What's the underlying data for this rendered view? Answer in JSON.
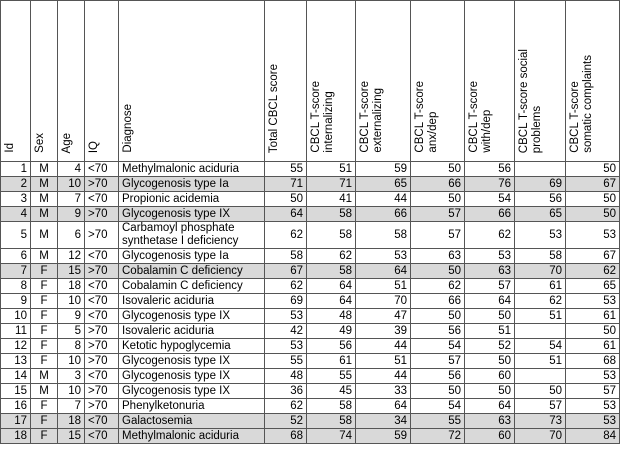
{
  "table": {
    "header": [
      [
        "Id"
      ],
      [
        "Sex"
      ],
      [
        "Age"
      ],
      [
        "IQ"
      ],
      [
        "Diagnose"
      ],
      [
        "Total CBCL score"
      ],
      [
        "CBCL T-score",
        "internalizing"
      ],
      [
        "CBCL T-score",
        "externalizing"
      ],
      [
        "CBCL T-score",
        "anx/dep"
      ],
      [
        "CBCL T-score",
        "with/dep"
      ],
      [
        "CBCL T-score social",
        "problems"
      ],
      [
        "CBCL T-score",
        "somatic complaints"
      ]
    ],
    "rows": [
      {
        "cells": [
          1,
          "M",
          4,
          "<70",
          "Methylmalonic aciduria",
          55,
          51,
          59,
          50,
          56,
          null,
          50
        ],
        "shaded": false
      },
      {
        "cells": [
          2,
          "M",
          10,
          ">70",
          "Glycogenosis type Ia",
          71,
          71,
          65,
          66,
          76,
          69,
          67
        ],
        "shaded": true
      },
      {
        "cells": [
          3,
          "M",
          7,
          "<70",
          "Propionic acidemia",
          50,
          41,
          44,
          50,
          54,
          56,
          50
        ],
        "shaded": false
      },
      {
        "cells": [
          4,
          "M",
          9,
          ">70",
          "Glycogenosis type IX",
          64,
          58,
          66,
          57,
          66,
          65,
          50
        ],
        "shaded": true
      },
      {
        "cells": [
          5,
          "M",
          6,
          ">70",
          "Carbamoyl phosphate synthetase I deficiency",
          62,
          58,
          58,
          57,
          62,
          53,
          53
        ],
        "shaded": false
      },
      {
        "cells": [
          6,
          "M",
          12,
          "<70",
          "Glycogenosis type Ia",
          58,
          62,
          53,
          63,
          53,
          58,
          67
        ],
        "shaded": false
      },
      {
        "cells": [
          7,
          "F",
          15,
          ">70",
          "Cobalamin C deficiency",
          67,
          58,
          64,
          50,
          63,
          70,
          62
        ],
        "shaded": true
      },
      {
        "cells": [
          8,
          "F",
          18,
          "<70",
          "Cobalamin C deficiency",
          62,
          64,
          51,
          62,
          57,
          61,
          65
        ],
        "shaded": false
      },
      {
        "cells": [
          9,
          "F",
          10,
          "<70",
          "Isovaleric aciduria",
          69,
          64,
          70,
          66,
          64,
          62,
          53
        ],
        "shaded": false
      },
      {
        "cells": [
          10,
          "F",
          9,
          "<70",
          "Glycogenosis type IX",
          53,
          48,
          47,
          50,
          50,
          51,
          61
        ],
        "shaded": false
      },
      {
        "cells": [
          11,
          "F",
          5,
          ">70",
          "Isovaleric aciduria",
          42,
          49,
          39,
          56,
          51,
          null,
          50
        ],
        "shaded": false
      },
      {
        "cells": [
          12,
          "F",
          8,
          ">70",
          "Ketotic hypoglycemia",
          53,
          56,
          44,
          54,
          52,
          54,
          61
        ],
        "shaded": false
      },
      {
        "cells": [
          13,
          "F",
          10,
          ">70",
          "Glycogenosis type IX",
          55,
          61,
          51,
          57,
          50,
          51,
          68
        ],
        "shaded": false
      },
      {
        "cells": [
          14,
          "M",
          3,
          "<70",
          "Glycogenosis type IX",
          48,
          55,
          44,
          56,
          60,
          null,
          53
        ],
        "shaded": false
      },
      {
        "cells": [
          15,
          "M",
          10,
          ">70",
          "Glycogenosis type IX",
          36,
          45,
          33,
          50,
          50,
          50,
          57
        ],
        "shaded": false
      },
      {
        "cells": [
          16,
          "F",
          7,
          ">70",
          "Phenylketonuria",
          62,
          58,
          64,
          54,
          64,
          57,
          53
        ],
        "shaded": false
      },
      {
        "cells": [
          17,
          "F",
          18,
          "<70",
          "Galactosemia",
          52,
          58,
          34,
          55,
          63,
          73,
          53
        ],
        "shaded": true
      },
      {
        "cells": [
          18,
          "F",
          15,
          "<70",
          "Methylmalonic aciduria",
          68,
          74,
          59,
          72,
          60,
          70,
          84
        ],
        "shaded": true
      }
    ]
  }
}
